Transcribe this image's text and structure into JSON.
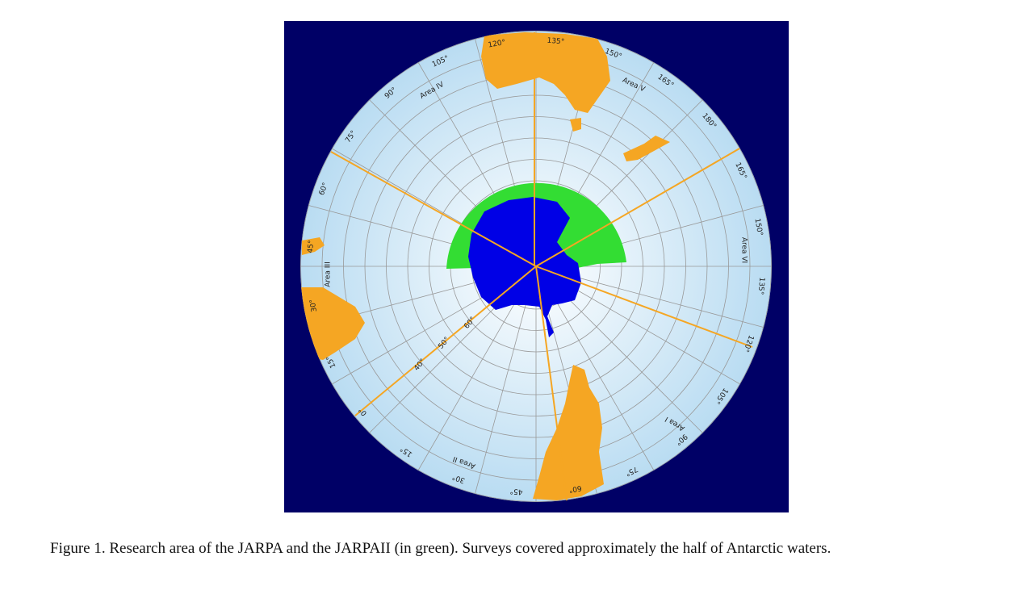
{
  "map": {
    "area_labels": [
      "Area IV",
      "Area V",
      "Area VI",
      "Area I",
      "Area II",
      "Area III"
    ],
    "rim_labels": [
      "120°",
      "135°",
      "150°",
      "165°",
      "180°",
      "165°",
      "150°",
      "135°",
      "120°",
      "105°",
      "90°",
      "75°",
      "60°",
      "45°",
      "30°",
      "15°",
      "0°",
      "15°",
      "30°",
      "45°",
      "60°",
      "75°",
      "90°",
      "105°"
    ],
    "lat_labels": [
      "60°",
      "50°",
      "40°"
    ]
  },
  "figure": {
    "caption": "Figure 1. Research area of the JARPA and the JARPAII (in green). Surveys covered approximately the half of Antarctic waters."
  }
}
